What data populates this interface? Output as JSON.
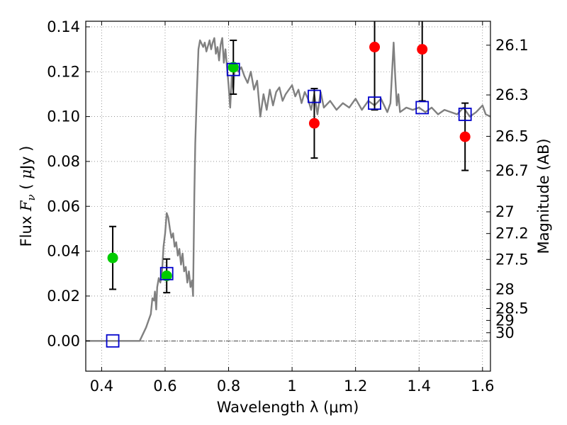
{
  "chart_data": {
    "type": "scatter",
    "title": "",
    "xlabel": "Wavelength  λ (μm)",
    "ylabel_parts": [
      "Flux  ",
      "F",
      "ν",
      "  ( ",
      "μ",
      "Jy )"
    ],
    "y2label": "Magnitude (AB)",
    "xlim": [
      0.35,
      1.625
    ],
    "ylim": [
      -0.0135,
      0.1425
    ],
    "grid": true,
    "x_ticks": [
      {
        "v": 0.4,
        "label": "0.4"
      },
      {
        "v": 0.6,
        "label": "0.6"
      },
      {
        "v": 0.8,
        "label": "0.8"
      },
      {
        "v": 1.0,
        "label": "1"
      },
      {
        "v": 1.2,
        "label": "1.2"
      },
      {
        "v": 1.4,
        "label": "1.4"
      },
      {
        "v": 1.6,
        "label": "1.6"
      }
    ],
    "y_ticks": [
      {
        "v": 0.0,
        "label": "0.00"
      },
      {
        "v": 0.02,
        "label": "0.02"
      },
      {
        "v": 0.04,
        "label": "0.04"
      },
      {
        "v": 0.06,
        "label": "0.06"
      },
      {
        "v": 0.08,
        "label": "0.08"
      },
      {
        "v": 0.1,
        "label": "0.10"
      },
      {
        "v": 0.12,
        "label": "0.12"
      },
      {
        "v": 0.14,
        "label": "0.14"
      }
    ],
    "mag_ticks": [
      {
        "v": 26.1,
        "label": "26.1"
      },
      {
        "v": 26.3,
        "label": "26.3"
      },
      {
        "v": 26.5,
        "label": "26.5"
      },
      {
        "v": 26.7,
        "label": "26.7"
      },
      {
        "v": 27.0,
        "label": "27"
      },
      {
        "v": 27.2,
        "label": "27.2"
      },
      {
        "v": 27.5,
        "label": "27.5"
      },
      {
        "v": 28.0,
        "label": "28"
      },
      {
        "v": 28.5,
        "label": "28.5"
      },
      {
        "v": 29.0,
        "label": "29"
      },
      {
        "v": 30.0,
        "label": "30"
      }
    ],
    "model_spectrum": {
      "color": "#808080",
      "x": [
        0.35,
        0.52,
        0.54,
        0.555,
        0.56,
        0.565,
        0.568,
        0.572,
        0.575,
        0.58,
        0.585,
        0.59,
        0.595,
        0.6,
        0.605,
        0.61,
        0.615,
        0.62,
        0.625,
        0.63,
        0.635,
        0.64,
        0.645,
        0.65,
        0.655,
        0.66,
        0.665,
        0.67,
        0.675,
        0.68,
        0.685,
        0.688,
        0.692,
        0.695,
        0.7,
        0.705,
        0.71,
        0.72,
        0.725,
        0.73,
        0.74,
        0.745,
        0.75,
        0.755,
        0.76,
        0.765,
        0.77,
        0.775,
        0.78,
        0.785,
        0.79,
        0.795,
        0.8,
        0.805,
        0.81,
        0.815,
        0.82,
        0.83,
        0.84,
        0.85,
        0.86,
        0.87,
        0.88,
        0.89,
        0.9,
        0.91,
        0.92,
        0.93,
        0.94,
        0.95,
        0.96,
        0.97,
        0.98,
        0.99,
        1.0,
        1.01,
        1.02,
        1.03,
        1.04,
        1.05,
        1.06,
        1.07,
        1.08,
        1.09,
        1.1,
        1.12,
        1.14,
        1.16,
        1.18,
        1.2,
        1.22,
        1.24,
        1.26,
        1.28,
        1.3,
        1.31,
        1.32,
        1.325,
        1.33,
        1.335,
        1.34,
        1.36,
        1.38,
        1.4,
        1.42,
        1.44,
        1.46,
        1.48,
        1.5,
        1.52,
        1.54,
        1.56,
        1.58,
        1.6,
        1.61,
        1.625
      ],
      "y": [
        0.0,
        0.0,
        0.006,
        0.012,
        0.019,
        0.018,
        0.022,
        0.014,
        0.024,
        0.028,
        0.026,
        0.03,
        0.042,
        0.048,
        0.057,
        0.055,
        0.05,
        0.046,
        0.048,
        0.042,
        0.044,
        0.038,
        0.041,
        0.034,
        0.039,
        0.031,
        0.033,
        0.026,
        0.031,
        0.024,
        0.027,
        0.02,
        0.065,
        0.088,
        0.11,
        0.13,
        0.134,
        0.131,
        0.133,
        0.129,
        0.134,
        0.13,
        0.133,
        0.135,
        0.128,
        0.131,
        0.125,
        0.132,
        0.135,
        0.124,
        0.13,
        0.122,
        0.114,
        0.104,
        0.118,
        0.112,
        0.124,
        0.12,
        0.122,
        0.118,
        0.115,
        0.12,
        0.112,
        0.116,
        0.1,
        0.11,
        0.103,
        0.112,
        0.105,
        0.111,
        0.113,
        0.107,
        0.11,
        0.112,
        0.114,
        0.109,
        0.112,
        0.106,
        0.111,
        0.108,
        0.103,
        0.11,
        0.101,
        0.111,
        0.104,
        0.107,
        0.103,
        0.106,
        0.104,
        0.108,
        0.103,
        0.107,
        0.105,
        0.108,
        0.102,
        0.106,
        0.133,
        0.118,
        0.105,
        0.11,
        0.102,
        0.104,
        0.103,
        0.104,
        0.102,
        0.104,
        0.101,
        0.103,
        0.102,
        0.101,
        0.104,
        0.1,
        0.102,
        0.105,
        0.101,
        0.1
      ]
    },
    "series": [
      {
        "color": "#00cc00",
        "points": [
          {
            "x": 0.435,
            "y": 0.037,
            "err": 0.014
          },
          {
            "x": 0.605,
            "y": 0.029,
            "err": 0.0075
          },
          {
            "x": 0.815,
            "y": 0.122,
            "err": 0.012
          }
        ]
      },
      {
        "color": "#ff0000",
        "points": [
          {
            "x": 1.07,
            "y": 0.097,
            "err": 0.0155
          },
          {
            "x": 1.26,
            "y": 0.131,
            "err": 0.028
          },
          {
            "x": 1.41,
            "y": 0.13,
            "err": 0.023
          },
          {
            "x": 1.545,
            "y": 0.091,
            "err": 0.015
          }
        ]
      },
      {
        "color": "#0000cc",
        "marker": "open-square",
        "points": [
          {
            "x": 0.435,
            "y": 0.0
          },
          {
            "x": 0.605,
            "y": 0.03
          },
          {
            "x": 0.815,
            "y": 0.121
          },
          {
            "x": 1.07,
            "y": 0.109
          },
          {
            "x": 1.26,
            "y": 0.106
          },
          {
            "x": 1.41,
            "y": 0.104
          },
          {
            "x": 1.545,
            "y": 0.101
          }
        ]
      }
    ]
  }
}
